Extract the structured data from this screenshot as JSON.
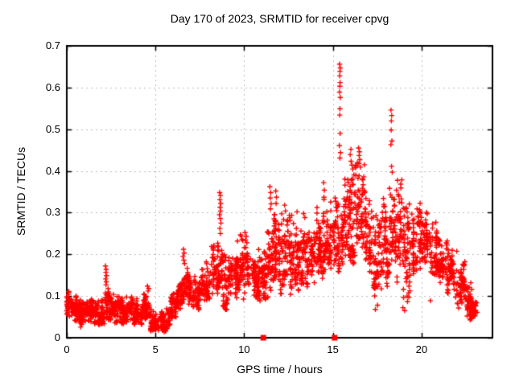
{
  "chart": {
    "title": "Day 170 of 2023, SRMTID for receiver cpvg",
    "xlabel": "GPS time / hours",
    "ylabel": "SRMTID / TECUs"
  },
  "chart_data": {
    "type": "scatter",
    "title": "Day 170 of 2023, SRMTID for receiver cpvg",
    "xlabel": "GPS time / hours",
    "ylabel": "SRMTID / TECUs",
    "xlim": [
      0,
      24
    ],
    "ylim": [
      0,
      0.7
    ],
    "xticks": [
      0,
      5,
      10,
      15,
      20
    ],
    "xtick_labels": [
      "0",
      "5",
      "10",
      "15",
      "20"
    ],
    "yticks": [
      0,
      0.1,
      0.2,
      0.3,
      0.4,
      0.5,
      0.6,
      0.7
    ],
    "ytick_labels": [
      "0",
      "0.1",
      "0.2",
      "0.3",
      "0.4",
      "0.5",
      "0.6",
      "0.7"
    ],
    "grid": true,
    "grid_style": "dashed-gray",
    "legend_position": "none",
    "marker": "plus",
    "marker_color": "#ff0000",
    "series_name": "SRMTID",
    "baseline_square_marks_x": [
      11.08,
      15.1
    ],
    "clusters_fields": [
      "x_start_hour",
      "x_end_hour",
      "y_min_TECU",
      "y_max_TECU",
      "point_count"
    ],
    "clusters": [
      [
        0.0,
        0.3,
        0.05,
        0.12,
        45
      ],
      [
        0.3,
        0.7,
        0.035,
        0.105,
        55
      ],
      [
        0.7,
        1.2,
        0.025,
        0.095,
        70
      ],
      [
        1.2,
        1.7,
        0.03,
        0.1,
        70
      ],
      [
        1.7,
        2.1,
        0.03,
        0.09,
        55
      ],
      [
        2.1,
        2.35,
        0.045,
        0.125,
        30
      ],
      [
        2.35,
        2.8,
        0.035,
        0.11,
        60
      ],
      [
        2.8,
        3.3,
        0.03,
        0.1,
        65
      ],
      [
        3.3,
        3.8,
        0.035,
        0.105,
        65
      ],
      [
        3.8,
        4.3,
        0.03,
        0.095,
        65
      ],
      [
        4.3,
        4.75,
        0.035,
        0.105,
        55
      ],
      [
        4.75,
        5.25,
        0.015,
        0.065,
        65
      ],
      [
        5.25,
        5.8,
        0.012,
        0.07,
        70
      ],
      [
        5.8,
        6.2,
        0.04,
        0.11,
        55
      ],
      [
        6.2,
        6.6,
        0.06,
        0.155,
        50
      ],
      [
        6.6,
        7.1,
        0.08,
        0.175,
        60
      ],
      [
        7.1,
        7.6,
        0.065,
        0.155,
        60
      ],
      [
        7.6,
        8.1,
        0.08,
        0.185,
        60
      ],
      [
        8.1,
        8.55,
        0.1,
        0.235,
        55
      ],
      [
        8.55,
        8.8,
        0.11,
        0.23,
        30
      ],
      [
        8.8,
        9.3,
        0.06,
        0.205,
        60
      ],
      [
        9.3,
        9.8,
        0.09,
        0.23,
        60
      ],
      [
        9.8,
        10.3,
        0.08,
        0.26,
        60
      ],
      [
        10.3,
        10.8,
        0.09,
        0.215,
        60
      ],
      [
        10.8,
        11.3,
        0.08,
        0.225,
        60
      ],
      [
        11.3,
        11.65,
        0.1,
        0.29,
        45
      ],
      [
        11.65,
        11.95,
        0.12,
        0.3,
        40
      ],
      [
        11.95,
        12.45,
        0.1,
        0.3,
        60
      ],
      [
        12.45,
        12.95,
        0.1,
        0.295,
        60
      ],
      [
        12.95,
        13.45,
        0.1,
        0.3,
        65
      ],
      [
        13.45,
        13.95,
        0.12,
        0.285,
        65
      ],
      [
        13.95,
        14.45,
        0.13,
        0.32,
        65
      ],
      [
        14.45,
        14.75,
        0.15,
        0.345,
        40
      ],
      [
        14.75,
        15.25,
        0.15,
        0.335,
        60
      ],
      [
        15.25,
        15.55,
        0.15,
        0.36,
        40
      ],
      [
        15.55,
        15.95,
        0.16,
        0.385,
        55
      ],
      [
        15.95,
        16.35,
        0.17,
        0.43,
        55
      ],
      [
        16.35,
        16.75,
        0.19,
        0.44,
        55
      ],
      [
        16.75,
        17.25,
        0.14,
        0.35,
        60
      ],
      [
        17.25,
        17.75,
        0.08,
        0.3,
        60
      ],
      [
        17.75,
        18.15,
        0.12,
        0.335,
        55
      ],
      [
        18.15,
        18.45,
        0.15,
        0.39,
        40
      ],
      [
        18.45,
        18.95,
        0.12,
        0.38,
        55
      ],
      [
        18.95,
        19.45,
        0.08,
        0.33,
        60
      ],
      [
        19.45,
        19.95,
        0.15,
        0.325,
        60
      ],
      [
        19.95,
        20.45,
        0.17,
        0.31,
        60
      ],
      [
        20.45,
        20.95,
        0.14,
        0.285,
        60
      ],
      [
        20.95,
        21.45,
        0.12,
        0.26,
        60
      ],
      [
        21.45,
        21.95,
        0.1,
        0.225,
        60
      ],
      [
        21.95,
        22.45,
        0.065,
        0.185,
        60
      ],
      [
        22.45,
        22.85,
        0.04,
        0.135,
        60
      ],
      [
        22.85,
        23.1,
        0.04,
        0.105,
        25
      ]
    ],
    "outlier_points": [
      [
        2.18,
        0.172
      ],
      [
        2.22,
        0.164
      ],
      [
        2.2,
        0.157
      ],
      [
        2.24,
        0.149
      ],
      [
        2.19,
        0.141
      ],
      [
        2.23,
        0.134
      ],
      [
        2.21,
        0.127
      ],
      [
        4.55,
        0.124
      ],
      [
        4.62,
        0.118
      ],
      [
        4.58,
        0.112
      ],
      [
        6.58,
        0.212
      ],
      [
        6.62,
        0.203
      ],
      [
        6.55,
        0.195
      ],
      [
        6.6,
        0.186
      ],
      [
        6.64,
        0.178
      ],
      [
        8.62,
        0.348
      ],
      [
        8.66,
        0.341
      ],
      [
        8.63,
        0.331
      ],
      [
        8.68,
        0.322
      ],
      [
        8.64,
        0.313
      ],
      [
        8.67,
        0.304
      ],
      [
        8.61,
        0.295
      ],
      [
        8.65,
        0.286
      ],
      [
        8.69,
        0.275
      ],
      [
        8.63,
        0.262
      ],
      [
        8.66,
        0.25
      ],
      [
        9.62,
        0.232
      ],
      [
        10.05,
        0.252
      ],
      [
        10.12,
        0.243
      ],
      [
        11.45,
        0.362
      ],
      [
        11.5,
        0.348
      ],
      [
        11.47,
        0.335
      ],
      [
        11.52,
        0.321
      ],
      [
        11.48,
        0.309
      ],
      [
        11.78,
        0.352
      ],
      [
        11.82,
        0.337
      ],
      [
        11.8,
        0.322
      ],
      [
        12.28,
        0.318
      ],
      [
        12.33,
        0.304
      ],
      [
        12.98,
        0.302
      ],
      [
        13.35,
        0.298
      ],
      [
        14.48,
        0.372
      ],
      [
        14.52,
        0.354
      ],
      [
        14.5,
        0.337
      ],
      [
        15.38,
        0.656
      ],
      [
        15.42,
        0.647
      ],
      [
        15.4,
        0.639
      ],
      [
        15.39,
        0.628
      ],
      [
        15.41,
        0.612
      ],
      [
        15.4,
        0.603
      ],
      [
        15.38,
        0.589
      ],
      [
        15.42,
        0.576
      ],
      [
        15.4,
        0.549
      ],
      [
        15.39,
        0.534
      ],
      [
        15.41,
        0.49
      ],
      [
        15.37,
        0.461
      ],
      [
        15.43,
        0.444
      ],
      [
        15.4,
        0.431
      ],
      [
        16.02,
        0.452
      ],
      [
        15.98,
        0.439
      ],
      [
        16.45,
        0.455
      ],
      [
        16.5,
        0.446
      ],
      [
        16.48,
        0.437
      ],
      [
        16.52,
        0.427
      ],
      [
        16.47,
        0.418
      ],
      [
        16.55,
        0.409
      ],
      [
        17.4,
        0.068
      ],
      [
        17.52,
        0.078
      ],
      [
        18.28,
        0.546
      ],
      [
        18.32,
        0.533
      ],
      [
        18.3,
        0.52
      ],
      [
        18.29,
        0.498
      ],
      [
        18.33,
        0.472
      ],
      [
        18.27,
        0.463
      ],
      [
        18.31,
        0.411
      ],
      [
        18.35,
        0.397
      ],
      [
        18.95,
        0.072
      ],
      [
        19.05,
        0.065
      ],
      [
        20.5,
        0.089
      ],
      [
        22.55,
        0.118
      ],
      [
        22.62,
        0.11
      ]
    ],
    "colors": {
      "points": "#ff0000",
      "grid": "#bdbdbd",
      "axis": "#000000",
      "background": "#ffffff"
    }
  }
}
